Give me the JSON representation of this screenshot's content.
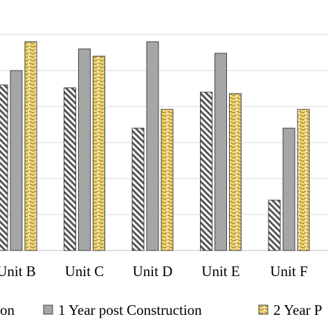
{
  "chart_data": {
    "type": "bar",
    "categories": [
      "Unit B",
      "Unit C",
      "Unit D",
      "Unit E",
      "Unit F"
    ],
    "series": [
      {
        "name": "on",
        "values": [
          11.5,
          11.3,
          8.5,
          11.0,
          3.5
        ],
        "color": "#b3b3b3",
        "pattern": "diagonal-hatch"
      },
      {
        "name": "1 Year post Construction",
        "values": [
          12.5,
          14.0,
          14.5,
          13.7,
          8.5
        ],
        "color": "#a6a6a6",
        "pattern": "solid"
      },
      {
        "name": "2 Year P",
        "values": [
          14.5,
          13.5,
          9.8,
          10.9,
          9.8
        ],
        "color": "#f5d56a",
        "pattern": "weave"
      }
    ],
    "ylim": [
      0,
      17.4
    ],
    "gridlines": [
      0,
      2.5,
      5,
      7.5,
      10,
      12.5,
      15
    ],
    "grid": true,
    "legend_position": "bottom"
  }
}
